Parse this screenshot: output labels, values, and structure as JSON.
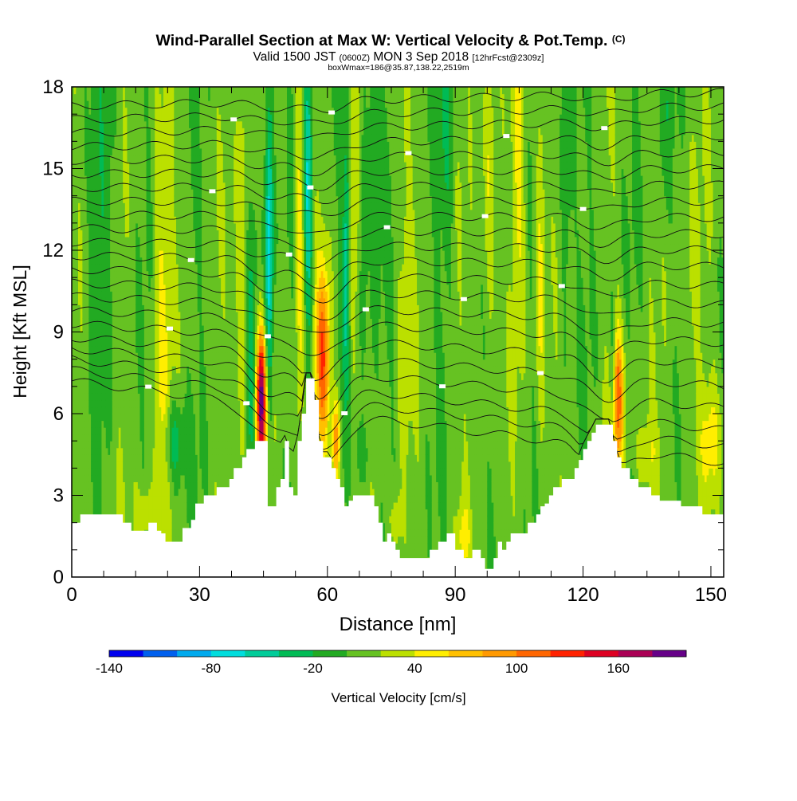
{
  "header": {
    "title": "Wind-Parallel Section at Max W: Vertical Velocity & Pot.Temp.",
    "title_mark": "(C)",
    "valid_prefix": "Valid 1500 JST",
    "valid_zulu": "(0600Z)",
    "valid_date": "MON 3 Sep 2018",
    "valid_fcst": "[12hrFcst@2309z]",
    "box_line": "boxWmax=186@35.87,138.22,2519m"
  },
  "chart_data": {
    "type": "heatmap",
    "xlabel": "Distance [nm]",
    "ylabel": "Height [Kft MSL]",
    "xlim": [
      0,
      153
    ],
    "ylim": [
      0,
      18
    ],
    "x_ticks": [
      0,
      30,
      60,
      90,
      120,
      150
    ],
    "x_minor_step": 7.5,
    "y_ticks": [
      0,
      3,
      6,
      9,
      12,
      15,
      18
    ],
    "y_minor_step": 1,
    "terrain": {
      "x": [
        0,
        2,
        4,
        8,
        12,
        14,
        16,
        18,
        20,
        21,
        22,
        24,
        26,
        28,
        29,
        30,
        31,
        32,
        33,
        34,
        35,
        36,
        37,
        38,
        39,
        40,
        41,
        42,
        43,
        44,
        45,
        46,
        47,
        48,
        49,
        50,
        51,
        52,
        53,
        54,
        55,
        56,
        57,
        58,
        59,
        60,
        61,
        62,
        63,
        64,
        65,
        66,
        67,
        68,
        69,
        70,
        71,
        72,
        73,
        74,
        75,
        76,
        77,
        78,
        79,
        80,
        82,
        84,
        86,
        88,
        90,
        92,
        94,
        96,
        97,
        98,
        99,
        100,
        101,
        102,
        103,
        104,
        105,
        106,
        107,
        108,
        109,
        110,
        111,
        112,
        113,
        114,
        115,
        116,
        117,
        118,
        119,
        120,
        121,
        122,
        123,
        124,
        125,
        126,
        127,
        128,
        129,
        130,
        131,
        132,
        133,
        134,
        135,
        136,
        137,
        138,
        139,
        140,
        141,
        142,
        143,
        144,
        145,
        146,
        147,
        148,
        149,
        150,
        151,
        152,
        153
      ],
      "y": [
        2.0,
        2.3,
        2.3,
        2.3,
        2.0,
        1.7,
        1.7,
        2.0,
        1.7,
        1.6,
        1.3,
        1.3,
        1.8,
        2.1,
        2.7,
        2.7,
        3.0,
        3.0,
        3.0,
        3.3,
        3.3,
        3.3,
        3.6,
        4.0,
        4.0,
        4.4,
        4.7,
        4.7,
        5.0,
        5.0,
        5.0,
        2.6,
        2.6,
        3.3,
        3.6,
        5.0,
        3.3,
        3.0,
        5.0,
        6.0,
        7.3,
        7.3,
        6.5,
        5.0,
        4.4,
        4.4,
        4.0,
        3.6,
        3.3,
        2.6,
        2.8,
        3.0,
        3.0,
        3.0,
        3.0,
        3.0,
        2.6,
        2.0,
        1.3,
        1.6,
        1.3,
        1.0,
        0.7,
        0.7,
        0.7,
        0.7,
        0.7,
        1.0,
        1.3,
        1.6,
        1.0,
        0.7,
        1.0,
        0.7,
        0.3,
        0.3,
        0.7,
        1.3,
        1.0,
        1.3,
        1.6,
        1.6,
        1.6,
        1.6,
        2.0,
        2.0,
        2.3,
        2.6,
        2.7,
        3.0,
        3.3,
        3.3,
        3.6,
        3.6,
        3.6,
        4.0,
        4.3,
        4.7,
        5.0,
        5.3,
        5.6,
        5.6,
        5.6,
        5.6,
        5.0,
        4.4,
        4.0,
        4.0,
        3.6,
        3.6,
        3.3,
        3.3,
        3.3,
        3.0,
        3.0,
        2.8,
        2.8,
        2.8,
        2.8,
        2.8,
        2.6,
        2.6,
        2.6,
        2.6,
        2.6,
        2.3,
        2.3,
        2.3,
        2.3,
        2.3,
        2.3
      ]
    },
    "updraft_columns": [
      {
        "x": 44.5,
        "half_width": 1.2,
        "peak": 180,
        "y_center": 6.5,
        "y_spread": 2.6
      },
      {
        "x": 59.0,
        "half_width": 1.7,
        "peak": 110,
        "y_center": 8.0,
        "y_spread": 3.2
      },
      {
        "x": 62.0,
        "half_width": 0.9,
        "peak": 95,
        "y_center": 5.0,
        "y_spread": 1.5
      },
      {
        "x": 128.0,
        "half_width": 1.5,
        "peak": 110,
        "y_center": 6.5,
        "y_spread": 2.5
      },
      {
        "x": 40.0,
        "half_width": 1.5,
        "peak": 40,
        "y_center": 11.0,
        "y_spread": 8.0
      },
      {
        "x": 53.5,
        "half_width": 1.0,
        "peak": 45,
        "y_center": 12.0,
        "y_spread": 8.0
      },
      {
        "x": 110.0,
        "half_width": 1.2,
        "peak": 40,
        "y_center": 12.0,
        "y_spread": 8.0
      },
      {
        "x": 21.0,
        "half_width": 2.0,
        "peak": 35,
        "y_center": 8.0,
        "y_spread": 9.0
      },
      {
        "x": 66.0,
        "half_width": 1.2,
        "peak": 35,
        "y_center": 14.0,
        "y_spread": 6.0
      },
      {
        "x": 98.0,
        "half_width": 1.5,
        "peak": 35,
        "y_center": 14.0,
        "y_spread": 6.0
      },
      {
        "x": 105.0,
        "half_width": 1.5,
        "peak": 35,
        "y_center": 15.0,
        "y_spread": 6.0
      },
      {
        "x": 17.0,
        "half_width": 2.0,
        "peak": 40,
        "y_center": 2.3,
        "y_spread": 1.0
      },
      {
        "x": 76.0,
        "half_width": 1.5,
        "peak": 35,
        "y_center": 2.0,
        "y_spread": 1.2
      },
      {
        "x": 92.0,
        "half_width": 1.5,
        "peak": 35,
        "y_center": 1.5,
        "y_spread": 1.2
      },
      {
        "x": 135.0,
        "half_width": 3.0,
        "peak": 30,
        "y_center": 4.5,
        "y_spread": 1.5
      },
      {
        "x": 150.0,
        "half_width": 2.5,
        "peak": 35,
        "y_center": 5.0,
        "y_spread": 2.0
      },
      {
        "x": 78.0,
        "half_width": 2.0,
        "peak": 20,
        "y_center": 10.0,
        "y_spread": 7.0
      },
      {
        "x": 145.0,
        "half_width": 2.5,
        "peak": 20,
        "y_center": 10.0,
        "y_spread": 7.0
      }
    ],
    "downdraft_columns": [
      {
        "x": 46.3,
        "half_width": 1.0,
        "peak": -90,
        "y_center": 12.0,
        "y_spread": 6.0
      },
      {
        "x": 55.5,
        "half_width": 1.0,
        "peak": -70,
        "y_center": 14.0,
        "y_spread": 6.0
      },
      {
        "x": 64.5,
        "half_width": 0.8,
        "peak": -60,
        "y_center": 12.0,
        "y_spread": 5.0
      },
      {
        "x": 68.5,
        "half_width": 0.8,
        "peak": -40,
        "y_center": 13.0,
        "y_spread": 5.0
      },
      {
        "x": 127.0,
        "half_width": 0.8,
        "peak": -55,
        "y_center": 7.0,
        "y_spread": 3.0
      },
      {
        "x": 24.0,
        "half_width": 2.5,
        "peak": -45,
        "y_center": 5.0,
        "y_spread": 1.5
      },
      {
        "x": 42.0,
        "half_width": 1.5,
        "peak": -35,
        "y_center": 8.0,
        "y_spread": 6.0
      },
      {
        "x": 71.0,
        "half_width": 1.5,
        "peak": -30,
        "y_center": 15.0,
        "y_spread": 6.0
      },
      {
        "x": 88.0,
        "half_width": 1.5,
        "peak": -25,
        "y_center": 16.0,
        "y_spread": 5.0
      },
      {
        "x": 116.0,
        "half_width": 1.5,
        "peak": -30,
        "y_center": 15.0,
        "y_spread": 6.0
      },
      {
        "x": 139.0,
        "half_width": 2.0,
        "peak": -25,
        "y_center": 17.0,
        "y_spread": 4.0
      },
      {
        "x": 8.0,
        "half_width": 3.0,
        "peak": -20,
        "y_center": 14.0,
        "y_spread": 6.0
      },
      {
        "x": 68.0,
        "half_width": 2.0,
        "peak": -30,
        "y_center": 4.5,
        "y_spread": 1.2
      }
    ],
    "theta_contours": {
      "label_value": "??",
      "levels": [
        {
          "y_left": 7.2,
          "y_right": 4.2,
          "dip": 1.2
        },
        {
          "y_left": 7.6,
          "y_right": 4.8,
          "dip": 1.1
        },
        {
          "y_left": 8.0,
          "y_right": 5.4,
          "dip": 1.0
        },
        {
          "y_left": 8.4,
          "y_right": 6.2,
          "dip": 0.9
        },
        {
          "y_left": 8.8,
          "y_right": 7.0,
          "dip": 0.8
        },
        {
          "y_left": 9.3,
          "y_right": 7.8,
          "dip": 0.8
        },
        {
          "y_left": 9.8,
          "y_right": 8.6,
          "dip": 0.7
        },
        {
          "y_left": 10.3,
          "y_right": 9.3,
          "dip": 0.6
        },
        {
          "y_left": 10.8,
          "y_right": 10.0,
          "dip": 0.6
        },
        {
          "y_left": 11.3,
          "y_right": 10.7,
          "dip": 0.5
        },
        {
          "y_left": 11.8,
          "y_right": 11.4,
          "dip": 0.5
        },
        {
          "y_left": 12.3,
          "y_right": 12.0,
          "dip": 0.4
        },
        {
          "y_left": 12.8,
          "y_right": 12.6,
          "dip": 0.4
        },
        {
          "y_left": 13.3,
          "y_right": 13.2,
          "dip": 0.4
        },
        {
          "y_left": 13.8,
          "y_right": 13.8,
          "dip": 0.3
        },
        {
          "y_left": 14.3,
          "y_right": 14.4,
          "dip": 0.3
        },
        {
          "y_left": 14.8,
          "y_right": 15.0,
          "dip": 0.3
        },
        {
          "y_left": 15.3,
          "y_right": 15.6,
          "dip": 0.3
        },
        {
          "y_left": 15.8,
          "y_right": 16.2,
          "dip": 0.3
        },
        {
          "y_left": 16.3,
          "y_right": 16.8,
          "dip": 0.2
        },
        {
          "y_left": 16.8,
          "y_right": 17.3,
          "dip": 0.2
        },
        {
          "y_left": 17.3,
          "y_right": 17.8,
          "dip": 0.2
        }
      ]
    }
  },
  "colorbar": {
    "title": "Vertical Velocity [cm/s]",
    "min": -140,
    "step": 20,
    "labels": [
      "-140",
      "-80",
      "-20",
      "40",
      "100",
      "160"
    ],
    "label_values": [
      -140,
      -80,
      -20,
      40,
      100,
      160
    ],
    "colors": [
      "#0000ee",
      "#0060ee",
      "#00aaee",
      "#00dddd",
      "#00cc99",
      "#00bb55",
      "#22aa22",
      "#66c222",
      "#bbe000",
      "#ffee00",
      "#ffc000",
      "#ff9900",
      "#ff6600",
      "#ff2200",
      "#dd0022",
      "#aa0055",
      "#660088"
    ]
  }
}
